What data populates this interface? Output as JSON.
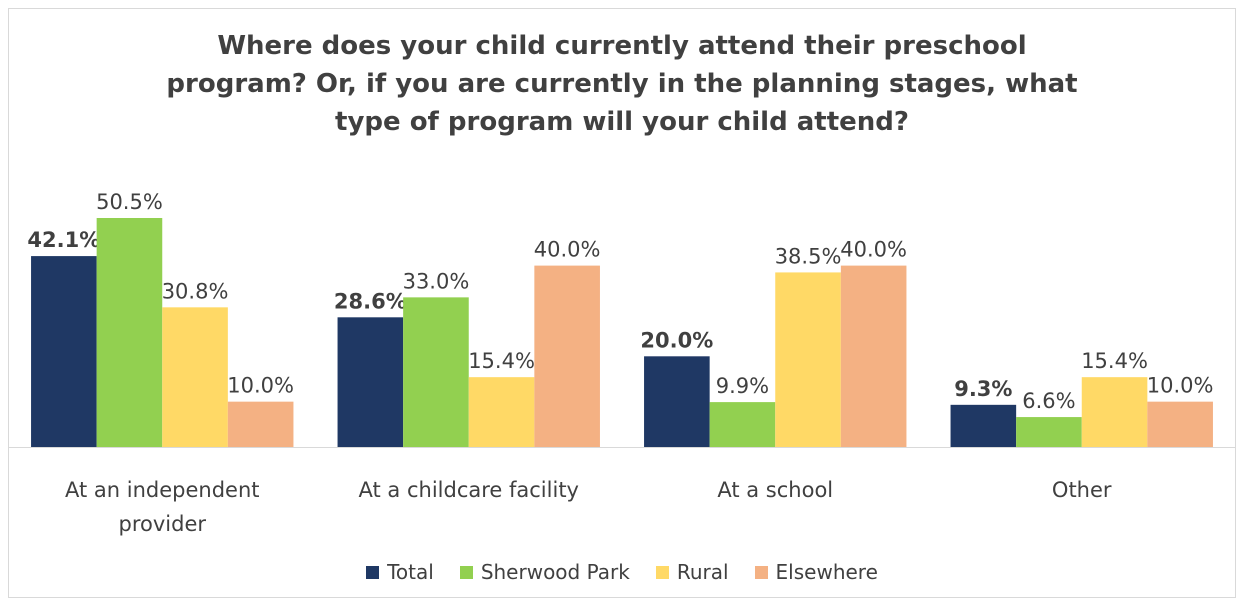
{
  "chart_data": {
    "type": "bar",
    "title_lines": [
      "Where does your child currently attend their preschool",
      "program? Or, if you are currently in the planning stages, what",
      "type of program will your child attend?"
    ],
    "categories": [
      [
        "At an independent",
        "provider"
      ],
      [
        "At a childcare facility"
      ],
      [
        "At a school"
      ],
      [
        "Other"
      ]
    ],
    "series": [
      {
        "name": "Total",
        "color": "#1f3864",
        "values": [
          42.1,
          28.6,
          20.0,
          9.3
        ],
        "labels": [
          "42.1%",
          "28.6%",
          "20.0%",
          "9.3%"
        ],
        "bold_labels": true
      },
      {
        "name": "Sherwood Park",
        "color": "#92d050",
        "values": [
          50.5,
          33.0,
          9.9,
          6.6
        ],
        "labels": [
          "50.5%",
          "33.0%",
          "9.9%",
          "6.6%"
        ],
        "bold_labels": false
      },
      {
        "name": "Rural",
        "color": "#ffd966",
        "values": [
          30.8,
          15.4,
          38.5,
          15.4
        ],
        "labels": [
          "30.8%",
          "15.4%",
          "38.5%",
          "15.4%"
        ],
        "bold_labels": false
      },
      {
        "name": "Elsewhere",
        "color": "#f4b183",
        "values": [
          10.0,
          40.0,
          40.0,
          10.0
        ],
        "labels": [
          "10.0%",
          "40.0%",
          "40.0%",
          "10.0%"
        ],
        "bold_labels": false
      }
    ],
    "ylim": [
      0,
      50.5
    ],
    "grid": false,
    "legend_position": "bottom"
  }
}
